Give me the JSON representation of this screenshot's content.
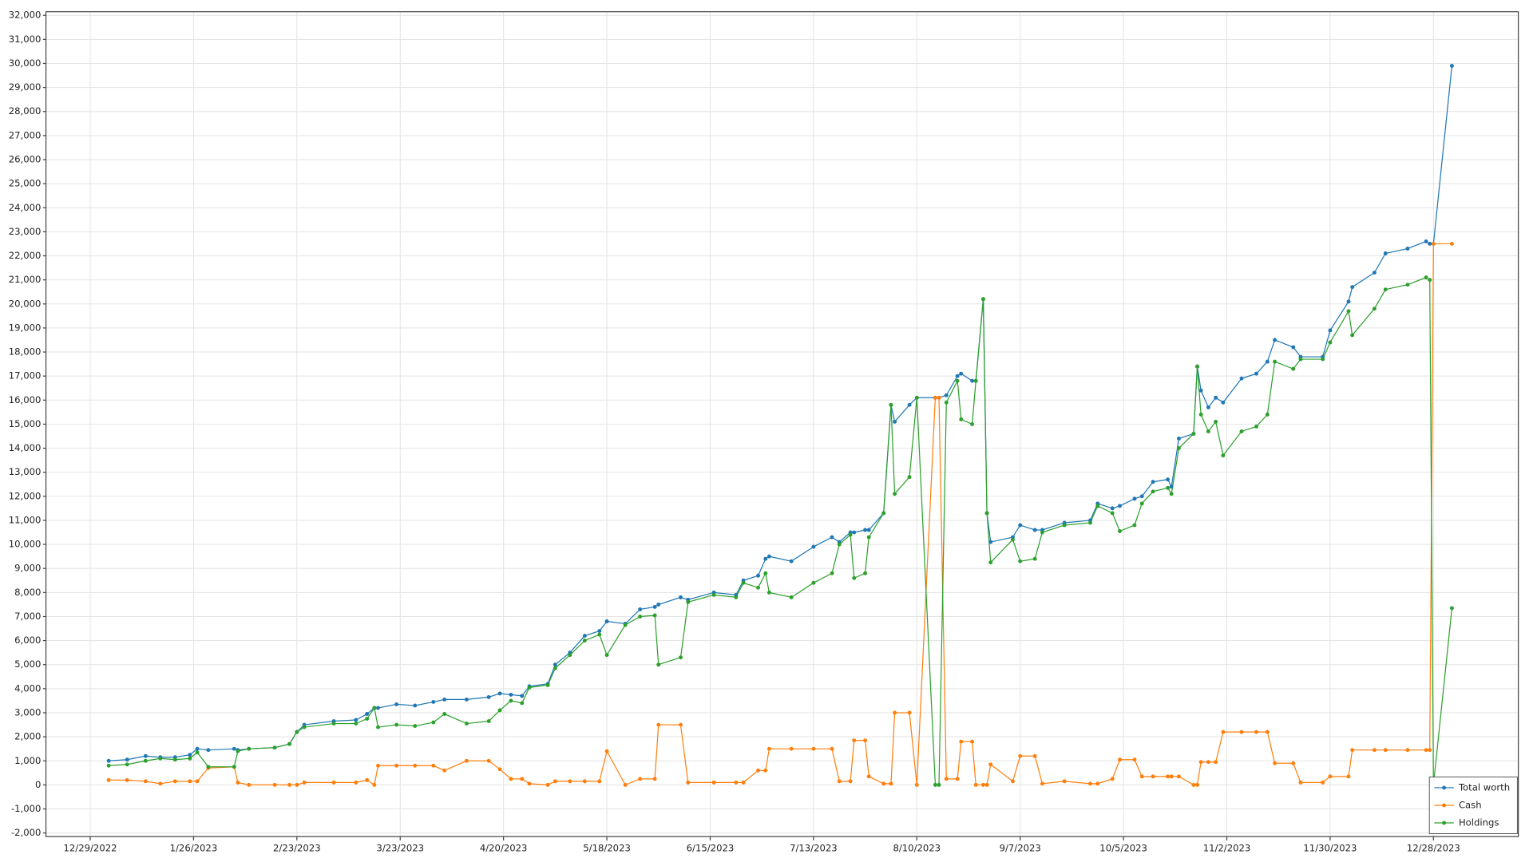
{
  "chart_data": {
    "type": "line",
    "x": [
      "1/3/2023",
      "1/8/2023",
      "1/13/2023",
      "1/17/2023",
      "1/21/2023",
      "1/25/2023",
      "1/27/2023",
      "1/30/2023",
      "2/6/2023",
      "2/7/2023",
      "2/10/2023",
      "2/17/2023",
      "2/21/2023",
      "2/23/2023",
      "2/25/2023",
      "3/5/2023",
      "3/11/2023",
      "3/14/2023",
      "3/16/2023",
      "3/17/2023",
      "3/22/2023",
      "3/27/2023",
      "4/1/2023",
      "4/4/2023",
      "4/10/2023",
      "4/16/2023",
      "4/19/2023",
      "4/22/2023",
      "4/25/2023",
      "4/27/2023",
      "5/2/2023",
      "5/4/2023",
      "5/8/2023",
      "5/12/2023",
      "5/16/2023",
      "5/18/2023",
      "5/23/2023",
      "5/27/2023",
      "5/31/2023",
      "6/1/2023",
      "6/7/2023",
      "6/9/2023",
      "6/16/2023",
      "6/22/2023",
      "6/24/2023",
      "6/28/2023",
      "6/30/2023",
      "7/1/2023",
      "7/7/2023",
      "7/13/2023",
      "7/18/2023",
      "7/20/2023",
      "7/23/2023",
      "7/24/2023",
      "7/27/2023",
      "7/28/2023",
      "8/1/2023",
      "8/3/2023",
      "8/4/2023",
      "8/8/2023",
      "8/10/2023",
      "8/15/2023",
      "8/16/2023",
      "8/18/2023",
      "8/21/2023",
      "8/22/2023",
      "8/25/2023",
      "8/26/2023",
      "8/28/2023",
      "8/29/2023",
      "8/30/2023",
      "9/5/2023",
      "9/7/2023",
      "9/11/2023",
      "9/13/2023",
      "9/19/2023",
      "9/26/2023",
      "9/28/2023",
      "10/2/2023",
      "10/4/2023",
      "10/8/2023",
      "10/10/2023",
      "10/13/2023",
      "10/17/2023",
      "10/18/2023",
      "10/20/2023",
      "10/24/2023",
      "10/25/2023",
      "10/26/2023",
      "10/28/2023",
      "10/30/2023",
      "11/1/2023",
      "11/6/2023",
      "11/10/2023",
      "11/13/2023",
      "11/15/2023",
      "11/20/2023",
      "11/22/2023",
      "11/28/2023",
      "11/30/2023",
      "12/5/2023",
      "12/6/2023",
      "12/12/2023",
      "12/15/2023",
      "12/21/2023",
      "12/26/2023",
      "12/27/2023",
      "12/28/2023",
      "1/2/2024"
    ],
    "series": [
      {
        "name": "Total worth",
        "color": "#1f77b4",
        "values": [
          1000,
          1050,
          1200,
          1150,
          1150,
          1250,
          1500,
          1450,
          1500,
          1450,
          1500,
          1550,
          1700,
          2200,
          2500,
          2650,
          2700,
          2950,
          3200,
          3200,
          3350,
          3300,
          3450,
          3550,
          3550,
          3650,
          3800,
          3750,
          3700,
          4100,
          4200,
          5000,
          5500,
          6200,
          6400,
          6800,
          6700,
          7300,
          7400,
          7500,
          7800,
          7700,
          8000,
          7900,
          8500,
          8700,
          9400,
          9500,
          9300,
          9900,
          10300,
          10100,
          10500,
          10500,
          10600,
          10600,
          11300,
          15800,
          15100,
          15800,
          16100,
          16100,
          16100,
          16200,
          17000,
          17100,
          16800,
          16800,
          20200,
          11300,
          10100,
          10300,
          10800,
          10600,
          10600,
          10900,
          11000,
          11700,
          11500,
          11600,
          11900,
          12000,
          12600,
          12700,
          12400,
          14400,
          14600,
          17400,
          16400,
          15700,
          16100,
          15900,
          16900,
          17100,
          17600,
          18500,
          18200,
          17800,
          17800,
          18900,
          20100,
          20700,
          21300,
          22100,
          22300,
          22600,
          22500,
          22500,
          29900
        ]
      },
      {
        "name": "Cash",
        "color": "#ff7f0e",
        "values": [
          200,
          200,
          150,
          50,
          150,
          150,
          150,
          700,
          750,
          100,
          0,
          0,
          0,
          0,
          100,
          100,
          100,
          200,
          0,
          800,
          800,
          800,
          800,
          600,
          1000,
          1000,
          650,
          250,
          250,
          50,
          0,
          150,
          150,
          150,
          150,
          1400,
          0,
          250,
          250,
          2500,
          2500,
          100,
          100,
          100,
          100,
          600,
          600,
          1500,
          1500,
          1500,
          1500,
          150,
          150,
          1850,
          1850,
          350,
          50,
          50,
          3000,
          3000,
          0,
          16100,
          16100,
          250,
          250,
          1800,
          1800,
          0,
          0,
          0,
          850,
          150,
          1200,
          1200,
          50,
          150,
          50,
          50,
          250,
          1050,
          1050,
          350,
          350,
          350,
          350,
          350,
          0,
          0,
          950,
          950,
          950,
          2200,
          2200,
          2200,
          2200,
          900,
          900,
          100,
          100,
          350,
          350,
          1450,
          1450,
          1450,
          1450,
          1450,
          1450,
          22500,
          22500
        ]
      },
      {
        "name": "Holdings",
        "color": "#2ca02c",
        "values": [
          800,
          850,
          1000,
          1100,
          1050,
          1100,
          1350,
          750,
          750,
          1400,
          1500,
          1550,
          1700,
          2200,
          2400,
          2550,
          2550,
          2750,
          3200,
          2400,
          2500,
          2450,
          2600,
          2950,
          2550,
          2650,
          3100,
          3500,
          3400,
          4050,
          4150,
          4850,
          5400,
          6000,
          6250,
          5400,
          6650,
          7000,
          7050,
          5000,
          5300,
          7600,
          7900,
          7800,
          8400,
          8200,
          8800,
          8000,
          7800,
          8400,
          8800,
          10000,
          10400,
          8600,
          8800,
          10300,
          11300,
          15800,
          12100,
          12800,
          16100,
          0,
          0,
          15900,
          16800,
          15200,
          15000,
          16800,
          20200,
          11300,
          9250,
          10200,
          9300,
          9400,
          10500,
          10800,
          10900,
          11600,
          11300,
          10550,
          10800,
          11700,
          12200,
          12350,
          12100,
          14000,
          14600,
          17400,
          15400,
          14700,
          15100,
          13700,
          14700,
          14900,
          15400,
          17600,
          17300,
          17700,
          17700,
          18400,
          19700,
          18700,
          19800,
          20600,
          20800,
          21100,
          21000,
          0,
          7350
        ]
      }
    ],
    "xlim": [
      "12/17/2022",
      "1/20/2024"
    ],
    "xticks": [
      "12/29/2022",
      "1/26/2023",
      "2/23/2023",
      "3/23/2023",
      "4/20/2023",
      "5/18/2023",
      "6/15/2023",
      "7/13/2023",
      "8/10/2023",
      "9/7/2023",
      "10/5/2023",
      "11/2/2023",
      "11/30/2023",
      "12/28/2023"
    ],
    "ylim": [
      -2150,
      32150
    ],
    "yticks": [
      {
        "value": -2000,
        "label": "-2,000"
      },
      {
        "value": -1000,
        "label": "-1,000"
      },
      0,
      {
        "value": 1000,
        "label": "1,000"
      },
      {
        "value": 2000,
        "label": "2,000"
      },
      {
        "value": 3000,
        "label": "3,000"
      },
      {
        "value": 4000,
        "label": "4,000"
      },
      {
        "value": 5000,
        "label": "5,000"
      },
      {
        "value": 6000,
        "label": "6,000"
      },
      {
        "value": 7000,
        "label": "7,000"
      },
      {
        "value": 8000,
        "label": "8,000"
      },
      {
        "value": 9000,
        "label": "9,000"
      },
      {
        "value": 10000,
        "label": "10,000"
      },
      {
        "value": 11000,
        "label": "11,000"
      },
      {
        "value": 12000,
        "label": "12,000"
      },
      {
        "value": 13000,
        "label": "13,000"
      },
      {
        "value": 14000,
        "label": "14,000"
      },
      {
        "value": 15000,
        "label": "15,000"
      },
      {
        "value": 16000,
        "label": "16,000"
      },
      {
        "value": 17000,
        "label": "17,000"
      },
      {
        "value": 18000,
        "label": "18,000"
      },
      {
        "value": 19000,
        "label": "19,000"
      },
      {
        "value": 20000,
        "label": "20,000"
      },
      {
        "value": 21000,
        "label": "21,000"
      },
      {
        "value": 22000,
        "label": "22,000"
      },
      {
        "value": 23000,
        "label": "23,000"
      },
      {
        "value": 24000,
        "label": "24,000"
      },
      {
        "value": 25000,
        "label": "25,000"
      },
      {
        "value": 26000,
        "label": "26,000"
      },
      {
        "value": 27000,
        "label": "27,000"
      },
      {
        "value": 28000,
        "label": "28,000"
      },
      {
        "value": 29000,
        "label": "29,000"
      },
      {
        "value": 30000,
        "label": "30,000"
      },
      {
        "value": 31000,
        "label": "31,000"
      },
      {
        "value": 32000,
        "label": "32,000"
      }
    ],
    "grid": true,
    "legend": "bottom-right"
  }
}
